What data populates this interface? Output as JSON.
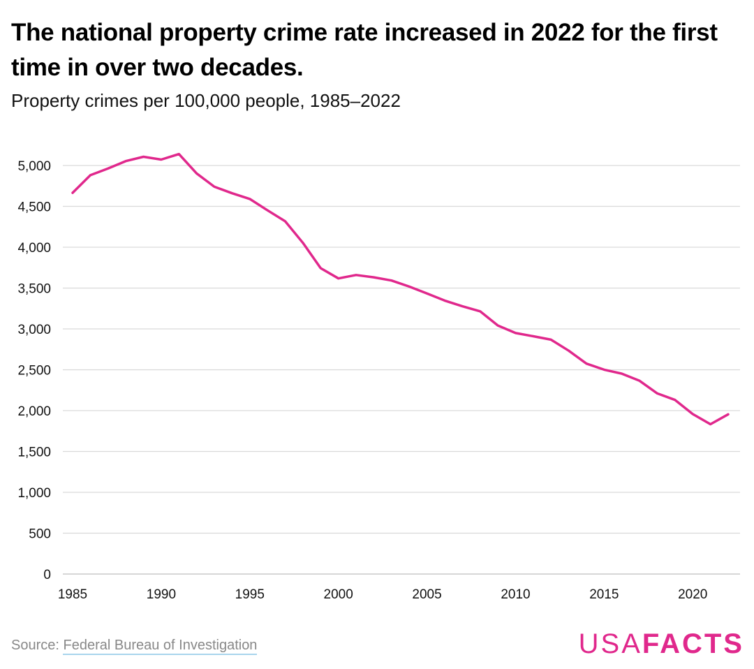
{
  "title": "The national property crime rate increased in 2022 for the first time in over two decades.",
  "subtitle": "Property crimes per 100,000 people, 1985–2022",
  "source": {
    "prefix": "Source: ",
    "link_text": "Federal Bureau of Investigation"
  },
  "logo": {
    "usa": "USA",
    "facts": "FACTS",
    "color": "#e0288c"
  },
  "chart_data": {
    "type": "line",
    "title": "The national property crime rate increased in 2022 for the first time in over two decades.",
    "subtitle": "Property crimes per 100,000 people, 1985–2022",
    "xlabel": "",
    "ylabel": "",
    "x": [
      1985,
      1986,
      1987,
      1988,
      1989,
      1990,
      1991,
      1992,
      1993,
      1994,
      1995,
      1996,
      1997,
      1998,
      1999,
      2000,
      2001,
      2002,
      2003,
      2004,
      2005,
      2006,
      2007,
      2008,
      2009,
      2010,
      2011,
      2012,
      2013,
      2014,
      2015,
      2016,
      2017,
      2018,
      2019,
      2020,
      2021,
      2022
    ],
    "series": [
      {
        "values": [
          4666,
          4881,
          4963,
          5054,
          5107,
          5073,
          5140,
          4903,
          4740,
          4661,
          4591,
          4451,
          4317,
          4053,
          3744,
          3618,
          3660,
          3632,
          3592,
          3518,
          3433,
          3347,
          3277,
          3215,
          3042,
          2950,
          2910,
          2868,
          2733,
          2575,
          2501,
          2452,
          2365,
          2210,
          2131,
          1958,
          1833,
          1955
        ],
        "color": "#e0288c"
      }
    ],
    "xlim": [
      1985,
      2022
    ],
    "ylim": [
      0,
      5000
    ],
    "y_ticks": [
      0,
      500,
      1000,
      1500,
      2000,
      2500,
      3000,
      3500,
      4000,
      4500,
      5000
    ],
    "y_tick_labels": [
      "0",
      "500",
      "1,000",
      "1,500",
      "2,000",
      "2,500",
      "3,000",
      "3,500",
      "4,000",
      "4,500",
      "5,000"
    ],
    "x_ticks": [
      1985,
      1990,
      1995,
      2000,
      2005,
      2010,
      2015,
      2020
    ],
    "x_tick_labels": [
      "1985",
      "1990",
      "1995",
      "2000",
      "2005",
      "2010",
      "2015",
      "2020"
    ],
    "grid": true,
    "legend": "none"
  }
}
